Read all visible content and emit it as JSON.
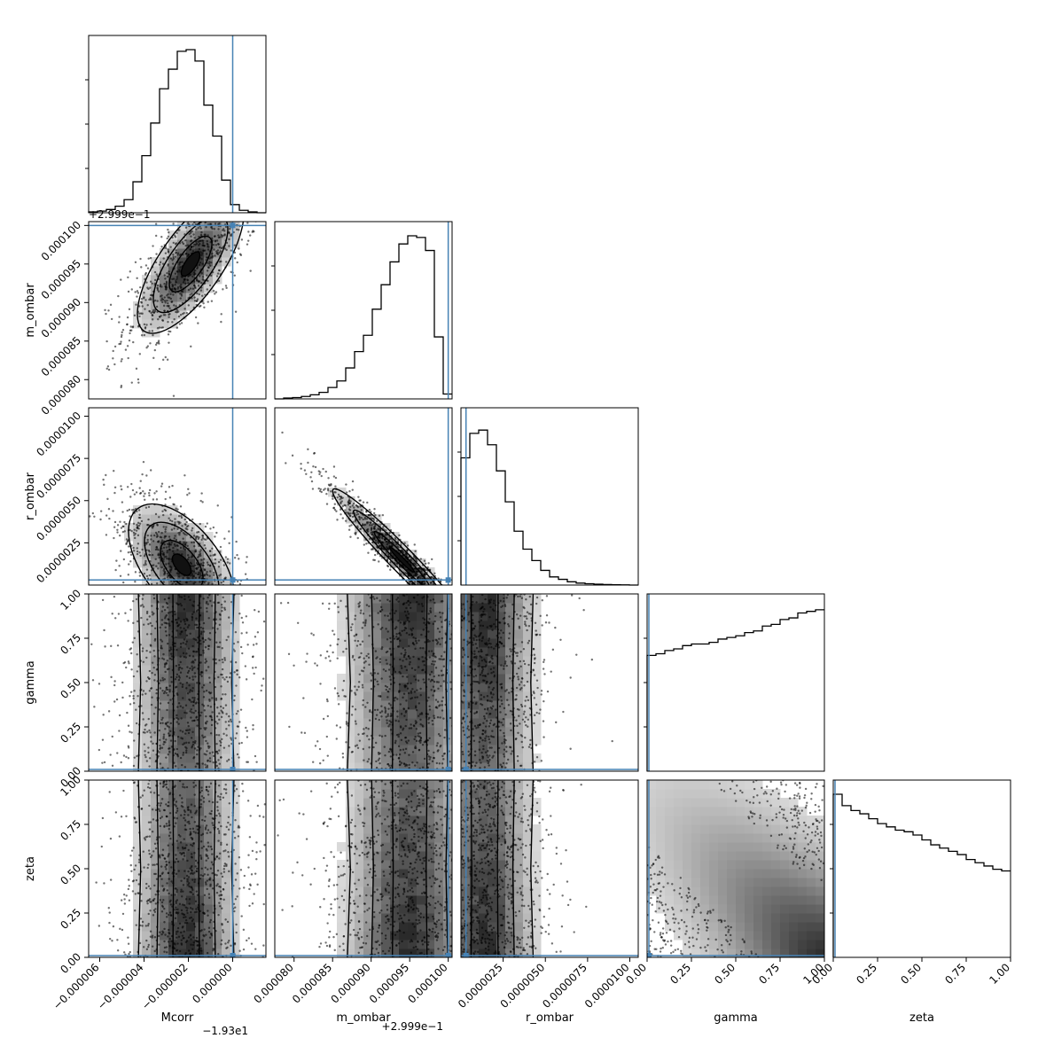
{
  "chart_data": {
    "type": "corner",
    "parameters": [
      "Mcorr",
      "m_ombar",
      "r_ombar",
      "gamma",
      "zeta"
    ],
    "axis_labels": {
      "Mcorr": "Mcorr",
      "m_ombar": "m_ombar",
      "r_ombar": "r_ombar",
      "gamma": "gamma",
      "zeta": "zeta"
    },
    "ranges": {
      "Mcorr": [
        -6.5e-06,
        1.5e-06
      ],
      "m_ombar": [
        7.75e-05,
        0.0001005
      ],
      "r_ombar": [
        0.0,
        1.05e-05
      ],
      "gamma": [
        0.0,
        1.0
      ],
      "zeta": [
        0.0,
        1.0
      ]
    },
    "truths": {
      "Mcorr": 0.0,
      "m_ombar": 0.0001,
      "r_ombar": 3e-07,
      "gamma": 0.01,
      "zeta": 0.01
    },
    "offset_labels": {
      "Mcorr_x": "−1.93e1",
      "m_ombar_x": "+2.999e−1",
      "m_ombar_y": "+2.999e−1"
    },
    "ticks": {
      "Mcorr": {
        "values": [
          -6e-06,
          -4e-06,
          -2e-06,
          0.0
        ],
        "labels": [
          "−0.000006",
          "−0.000004",
          "−0.000002",
          "0.000000"
        ]
      },
      "m_ombar": {
        "values": [
          8e-05,
          8.5e-05,
          9e-05,
          9.5e-05,
          0.0001
        ],
        "labels": [
          "0.000080",
          "0.000085",
          "0.000090",
          "0.000095",
          "0.000100"
        ]
      },
      "r_ombar": {
        "values": [
          2.5e-06,
          5e-06,
          7.5e-06,
          1e-05
        ],
        "labels": [
          "0.0000025",
          "0.0000050",
          "0.0000075",
          "0.0000100"
        ]
      },
      "gamma": {
        "values": [
          0.0,
          0.25,
          0.5,
          0.75,
          1.0
        ],
        "labels": [
          "0.00",
          "0.25",
          "0.50",
          "0.75",
          "1.00"
        ]
      },
      "zeta": {
        "values": [
          0.0,
          0.25,
          0.5,
          0.75,
          1.0
        ],
        "labels": [
          "0.00",
          "0.25",
          "0.50",
          "0.75",
          "1.00"
        ]
      }
    },
    "histograms": {
      "Mcorr": [
        0.005,
        0.01,
        0.02,
        0.04,
        0.08,
        0.19,
        0.35,
        0.55,
        0.76,
        0.88,
        0.99,
        1.0,
        0.93,
        0.66,
        0.47,
        0.2,
        0.05,
        0.015,
        0.005,
        0.0
      ],
      "m_ombar": [
        0.0,
        0.005,
        0.008,
        0.015,
        0.025,
        0.04,
        0.07,
        0.11,
        0.19,
        0.29,
        0.39,
        0.55,
        0.7,
        0.84,
        0.95,
        1.0,
        0.99,
        0.91,
        0.38,
        0.03
      ],
      "r_ombar": [
        0.78,
        0.93,
        0.95,
        0.86,
        0.7,
        0.51,
        0.33,
        0.22,
        0.15,
        0.09,
        0.05,
        0.035,
        0.02,
        0.012,
        0.008,
        0.005,
        0.003,
        0.002,
        0.001,
        0.0
      ],
      "gamma": [
        0.71,
        0.72,
        0.74,
        0.75,
        0.77,
        0.78,
        0.78,
        0.79,
        0.81,
        0.82,
        0.83,
        0.85,
        0.86,
        0.89,
        0.9,
        0.93,
        0.94,
        0.97,
        0.98,
        0.99
      ],
      "zeta": [
        1.0,
        0.93,
        0.9,
        0.88,
        0.85,
        0.82,
        0.8,
        0.78,
        0.77,
        0.75,
        0.72,
        0.69,
        0.67,
        0.65,
        0.63,
        0.6,
        0.58,
        0.56,
        0.54,
        0.53
      ]
    },
    "pairs": [
      {
        "x": "Mcorr",
        "y": "m_ombar",
        "mean": [
          -1.9e-06,
          9.5e-05
        ],
        "sd": [
          1.2e-06,
          4.5e-06
        ],
        "rho": 0.72
      },
      {
        "x": "Mcorr",
        "y": "r_ombar",
        "mean": [
          -2.3e-06,
          1.2e-06
        ],
        "sd": [
          1.2e-06,
          1.8e-06
        ],
        "rho": -0.55
      },
      {
        "x": "m_ombar",
        "y": "r_ombar",
        "mean": [
          9.4e-05,
          1.5e-06
        ],
        "sd": [
          4.5e-06,
          2.1e-06
        ],
        "rho": -0.97
      },
      {
        "x": "Mcorr",
        "y": "gamma",
        "mean": [
          -2.1e-06,
          0.55
        ],
        "sd": [
          1.2e-06,
          0.28
        ],
        "rho": 0.0
      },
      {
        "x": "m_ombar",
        "y": "gamma",
        "mean": [
          9.5e-05,
          0.55
        ],
        "sd": [
          4.5e-06,
          0.28
        ],
        "rho": 0.0
      },
      {
        "x": "r_ombar",
        "y": "gamma",
        "mean": [
          1.4e-06,
          0.55
        ],
        "sd": [
          1.6e-06,
          0.28
        ],
        "rho": 0.0
      },
      {
        "x": "Mcorr",
        "y": "zeta",
        "mean": [
          -2.1e-06,
          0.45
        ],
        "sd": [
          1.2e-06,
          0.28
        ],
        "rho": 0.0
      },
      {
        "x": "m_ombar",
        "y": "zeta",
        "mean": [
          9.5e-05,
          0.45
        ],
        "sd": [
          4.5e-06,
          0.28
        ],
        "rho": 0.0
      },
      {
        "x": "r_ombar",
        "y": "zeta",
        "mean": [
          1.4e-06,
          0.45
        ],
        "sd": [
          1.6e-06,
          0.28
        ],
        "rho": 0.0
      },
      {
        "x": "gamma",
        "y": "zeta",
        "mean": [
          0.5,
          0.5
        ],
        "sd": [
          0.3,
          0.3
        ],
        "rho": -0.3
      }
    ],
    "colors": {
      "truth": "#4682b4",
      "hist": "#000000",
      "points": "#000000",
      "density_high": "#1a1a1a",
      "density_low": "#f2f2f2"
    }
  }
}
